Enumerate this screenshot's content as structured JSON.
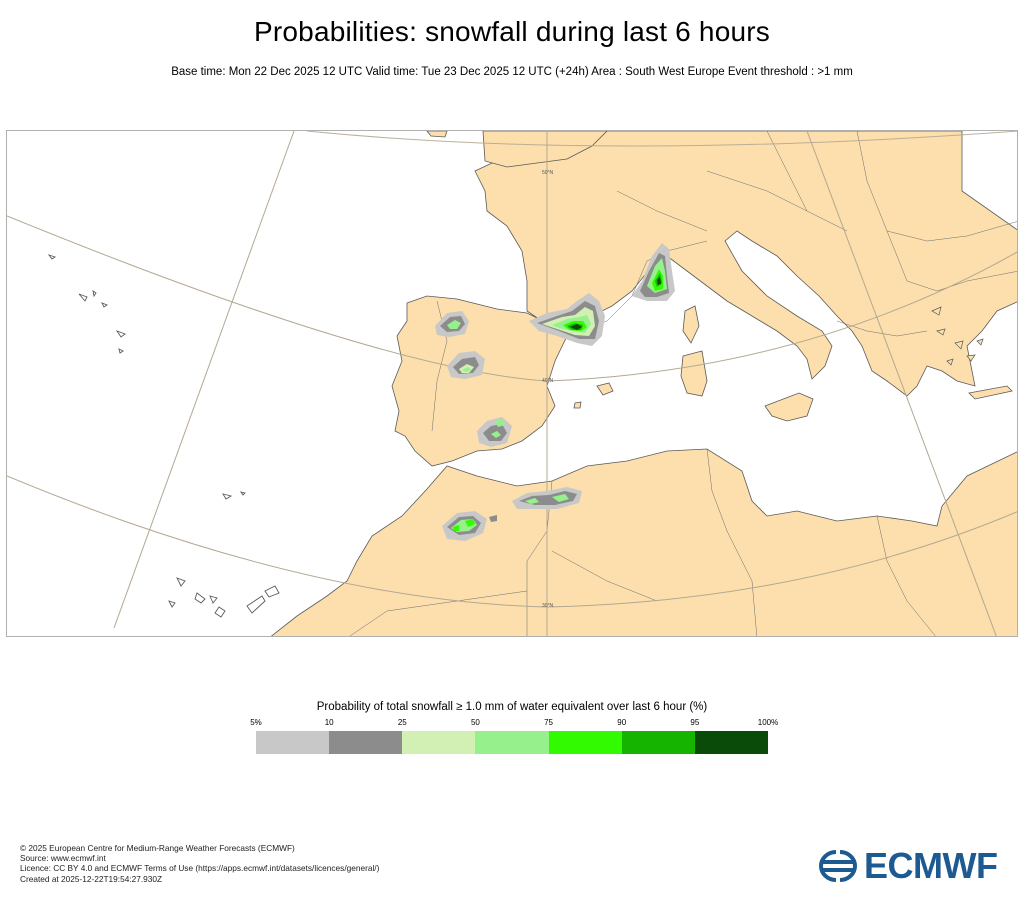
{
  "title": "Probabilities: snowfall during last 6 hours",
  "subtitle": "Base time: Mon 22 Dec 2025 12 UTC Valid time: Tue 23 Dec 2025 12 UTC (+24h) Area : South West Europe Event threshold : >1 mm",
  "map": {
    "land_color": "#fcdfac",
    "sea_color": "#ffffff",
    "graticule_labels": [
      "50°N",
      "40°N",
      "30°N"
    ]
  },
  "legend": {
    "title": "Probability of total snowfall ≥ 1.0 mm of water equivalent over last 6 hour (%)",
    "ticks": [
      "5%",
      "10",
      "25",
      "50",
      "75",
      "90",
      "95",
      "100%"
    ],
    "colors": [
      "#c8c8c8",
      "#8c8c8c",
      "#d2f0b4",
      "#96f08c",
      "#32fa00",
      "#14b400",
      "#0a4b0a"
    ]
  },
  "footer": {
    "line1": "© 2025 European Centre for Medium-Range Weather Forecasts (ECMWF)",
    "line2": "Source: www.ecmwf.int",
    "line3": "Licence: CC BY 4.0 and ECMWF Terms of Use (https://apps.ecmwf.int/datasets/licences/general/)",
    "line4": "Created at 2025-12-22T19:54:27.930Z"
  },
  "logo": {
    "text": "ECMWF",
    "color": "#1d5a92"
  }
}
